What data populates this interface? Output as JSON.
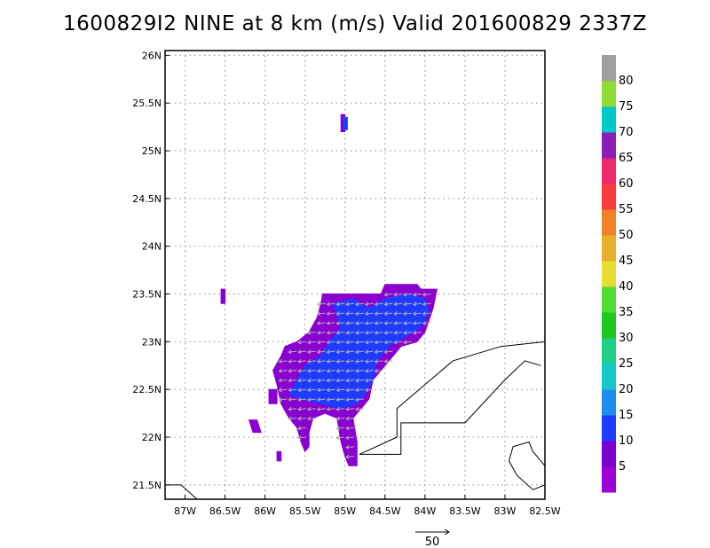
{
  "chart_data": {
    "type": "heatmap",
    "title": "1600829I2 NINE at 8 km (m/s) Valid 201600829 2337Z",
    "xlim": [
      -87.25,
      -82.5
    ],
    "ylim": [
      21.35,
      26.05
    ],
    "x_ticks": [
      {
        "value": -87.0,
        "label": "87W"
      },
      {
        "value": -86.5,
        "label": "86.5W"
      },
      {
        "value": -86.0,
        "label": "86W"
      },
      {
        "value": -85.5,
        "label": "85.5W"
      },
      {
        "value": -85.0,
        "label": "85W"
      },
      {
        "value": -84.5,
        "label": "84.5W"
      },
      {
        "value": -84.0,
        "label": "84W"
      },
      {
        "value": -83.5,
        "label": "83.5W"
      },
      {
        "value": -83.0,
        "label": "83W"
      },
      {
        "value": -82.5,
        "label": "82.5W"
      }
    ],
    "y_ticks": [
      {
        "value": 21.5,
        "label": "21.5N"
      },
      {
        "value": 22.0,
        "label": "22N"
      },
      {
        "value": 22.5,
        "label": "22.5N"
      },
      {
        "value": 23.0,
        "label": "23N"
      },
      {
        "value": 23.5,
        "label": "23.5N"
      },
      {
        "value": 24.0,
        "label": "24N"
      },
      {
        "value": 24.5,
        "label": "24.5N"
      },
      {
        "value": 25.0,
        "label": "25N"
      },
      {
        "value": 25.5,
        "label": "25.5N"
      },
      {
        "value": 26.0,
        "label": "26N"
      }
    ],
    "grid": true,
    "colorbar": {
      "labels": [
        "5",
        "10",
        "15",
        "20",
        "25",
        "30",
        "35",
        "40",
        "45",
        "50",
        "55",
        "60",
        "65",
        "70",
        "75",
        "80"
      ],
      "colors": [
        "#9c00d6",
        "#7a00d2",
        "#1e3cff",
        "#1f8cf0",
        "#12c8c8",
        "#1ecf8c",
        "#1ec81e",
        "#50dc32",
        "#e6dc32",
        "#e6af2d",
        "#f08228",
        "#fa3c3c",
        "#f0286e",
        "#8c1eb4",
        "#00c8c8",
        "#8cdc32",
        "#a0a0a0"
      ]
    },
    "wind_regions": [
      {
        "speed_band": "5-10",
        "color": "#8a00d0",
        "polygons": [
          [
            [
              -85.05,
              25.38
            ],
            [
              -85.0,
              25.38
            ],
            [
              -85.0,
              25.2
            ],
            [
              -85.05,
              25.2
            ]
          ],
          [
            [
              -86.55,
              23.55
            ],
            [
              -86.5,
              23.55
            ],
            [
              -86.5,
              23.4
            ],
            [
              -86.55,
              23.4
            ]
          ],
          [
            [
              -85.28,
              23.5
            ],
            [
              -84.55,
              23.5
            ],
            [
              -84.5,
              23.6
            ],
            [
              -84.1,
              23.6
            ],
            [
              -84.05,
              23.55
            ],
            [
              -83.85,
              23.55
            ],
            [
              -83.9,
              23.35
            ],
            [
              -84.0,
              23.1
            ],
            [
              -84.1,
              23.0
            ],
            [
              -84.3,
              22.95
            ],
            [
              -84.4,
              22.85
            ],
            [
              -84.55,
              22.7
            ],
            [
              -84.65,
              22.6
            ],
            [
              -84.7,
              22.4
            ],
            [
              -84.9,
              22.2
            ],
            [
              -84.85,
              21.95
            ],
            [
              -84.85,
              21.7
            ],
            [
              -84.95,
              21.7
            ],
            [
              -85.0,
              21.8
            ],
            [
              -85.05,
              21.95
            ],
            [
              -85.1,
              22.2
            ],
            [
              -85.25,
              22.25
            ],
            [
              -85.4,
              22.2
            ],
            [
              -85.45,
              22.05
            ],
            [
              -85.45,
              21.9
            ],
            [
              -85.5,
              21.85
            ],
            [
              -85.55,
              21.95
            ],
            [
              -85.6,
              22.1
            ],
            [
              -85.7,
              22.2
            ],
            [
              -85.8,
              22.35
            ],
            [
              -85.85,
              22.55
            ],
            [
              -85.9,
              22.7
            ],
            [
              -85.8,
              22.85
            ],
            [
              -85.75,
              22.95
            ],
            [
              -85.6,
              23.0
            ],
            [
              -85.45,
              23.1
            ],
            [
              -85.35,
              23.25
            ],
            [
              -85.3,
              23.4
            ]
          ],
          [
            [
              -86.2,
              22.18
            ],
            [
              -86.1,
              22.18
            ],
            [
              -86.05,
              22.05
            ],
            [
              -86.15,
              22.05
            ]
          ],
          [
            [
              -85.85,
              21.85
            ],
            [
              -85.8,
              21.85
            ],
            [
              -85.8,
              21.75
            ],
            [
              -85.85,
              21.75
            ]
          ],
          [
            [
              -85.95,
              22.5
            ],
            [
              -85.85,
              22.5
            ],
            [
              -85.85,
              22.35
            ],
            [
              -85.95,
              22.35
            ]
          ]
        ]
      },
      {
        "speed_band": "10-15",
        "color": "#1e3cff",
        "polygons": [
          [
            [
              -85.02,
              25.35
            ],
            [
              -84.97,
              25.35
            ],
            [
              -84.97,
              25.22
            ],
            [
              -85.02,
              25.22
            ]
          ],
          [
            [
              -85.15,
              23.4
            ],
            [
              -84.9,
              23.45
            ],
            [
              -84.7,
              23.35
            ],
            [
              -84.5,
              23.45
            ],
            [
              -84.2,
              23.5
            ],
            [
              -84.0,
              23.45
            ],
            [
              -83.95,
              23.3
            ],
            [
              -84.05,
              23.15
            ],
            [
              -84.25,
              23.05
            ],
            [
              -84.45,
              22.95
            ],
            [
              -84.6,
              22.8
            ],
            [
              -84.65,
              22.6
            ],
            [
              -84.75,
              22.45
            ],
            [
              -84.85,
              22.35
            ],
            [
              -85.05,
              22.3
            ],
            [
              -85.3,
              22.35
            ],
            [
              -85.55,
              22.4
            ],
            [
              -85.7,
              22.45
            ],
            [
              -85.6,
              22.6
            ],
            [
              -85.5,
              22.75
            ],
            [
              -85.3,
              22.85
            ],
            [
              -85.2,
              23.0
            ],
            [
              -85.05,
              23.15
            ]
          ]
        ]
      }
    ],
    "wind_vectors": {
      "direction": "westward",
      "color": "#b0b0b0"
    },
    "coastlines": [
      [
        [
          -87.25,
          21.5
        ],
        [
          -87.05,
          21.5
        ],
        [
          -86.85,
          21.35
        ]
      ],
      [
        [
          -84.82,
          21.82
        ],
        [
          -84.35,
          22.0
        ],
        [
          -84.35,
          22.3
        ],
        [
          -84.0,
          22.55
        ],
        [
          -83.65,
          22.8
        ],
        [
          -83.05,
          22.95
        ],
        [
          -82.5,
          23.0
        ]
      ],
      [
        [
          -84.82,
          21.82
        ],
        [
          -84.3,
          21.82
        ],
        [
          -84.3,
          22.15
        ],
        [
          -83.5,
          22.15
        ],
        [
          -83.0,
          22.6
        ],
        [
          -82.75,
          22.8
        ],
        [
          -82.55,
          22.75
        ]
      ],
      [
        [
          -82.5,
          21.5
        ],
        [
          -82.65,
          21.45
        ],
        [
          -82.85,
          21.6
        ],
        [
          -82.95,
          21.75
        ],
        [
          -82.9,
          21.9
        ],
        [
          -82.7,
          21.95
        ],
        [
          -82.65,
          21.85
        ],
        [
          -82.5,
          21.7
        ]
      ]
    ],
    "reference_vector": {
      "label": "50",
      "units": "m/s"
    }
  }
}
